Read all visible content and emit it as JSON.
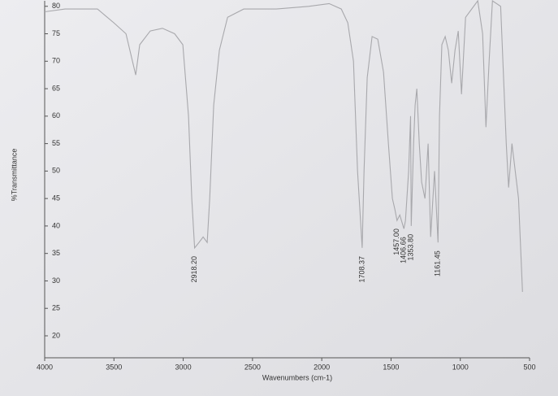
{
  "chart_data": {
    "type": "line",
    "x_label": "Wavenumbers (cm-1)",
    "y_label": "%Transmittance",
    "xlim": [
      4000,
      500
    ],
    "ylim": [
      16,
      81
    ],
    "xticks": [
      4000,
      3500,
      3000,
      2500,
      2000,
      1500,
      1000,
      500
    ],
    "yticks": [
      20,
      25,
      30,
      35,
      40,
      45,
      50,
      55,
      60,
      65,
      70,
      75,
      80
    ],
    "series": [
      {
        "name": "%Transmittance",
        "color": "#a8a8ac",
        "x": [
          4000,
          3853,
          3619,
          3501,
          3413,
          3343,
          3314,
          3238,
          3150,
          3062,
          3003,
          2962,
          2938,
          2918,
          2886,
          2856,
          2827,
          2809,
          2780,
          2739,
          2680,
          2563,
          2328,
          2094,
          1947,
          1859,
          1812,
          1771,
          1742,
          1708,
          1695,
          1672,
          1637,
          1596,
          1554,
          1519,
          1490,
          1472,
          1457,
          1437,
          1407,
          1396,
          1373,
          1359,
          1354,
          1337,
          1326,
          1314,
          1296,
          1279,
          1255,
          1232,
          1214,
          1186,
          1161,
          1150,
          1133,
          1109,
          1086,
          1062,
          1038,
          1015,
          991,
          962,
          874,
          839,
          815,
          792,
          768,
          709,
          668,
          651,
          627,
          580,
          551
        ],
        "values": [
          79,
          79.5,
          79.5,
          77,
          75,
          67.5,
          73,
          75.5,
          76,
          75,
          73,
          60,
          45,
          36,
          37,
          38,
          37,
          45,
          62,
          72,
          78,
          79.5,
          79.5,
          80,
          80.5,
          79.5,
          77,
          70,
          50,
          36,
          50,
          67,
          74.5,
          74,
          68,
          55,
          45,
          43,
          41,
          42,
          39.5,
          41,
          50,
          60,
          40,
          55,
          62,
          65,
          55,
          48,
          45,
          55,
          38,
          50,
          37,
          60,
          73,
          74.5,
          72,
          66,
          72,
          75.5,
          64,
          78,
          81,
          75,
          58,
          70,
          81,
          80,
          55,
          47,
          55,
          45,
          28
        ]
      }
    ],
    "annotations": [
      {
        "value": 2918.2,
        "label": "2918.20"
      },
      {
        "value": 1708.37,
        "label": "1708.37"
      },
      {
        "value": 1457,
        "label": "1457.00"
      },
      {
        "value": 1406.66,
        "label": "1406.66"
      },
      {
        "value": 1353.8,
        "label": "1353.80"
      },
      {
        "value": 1161.45,
        "label": "1161.45"
      }
    ]
  }
}
